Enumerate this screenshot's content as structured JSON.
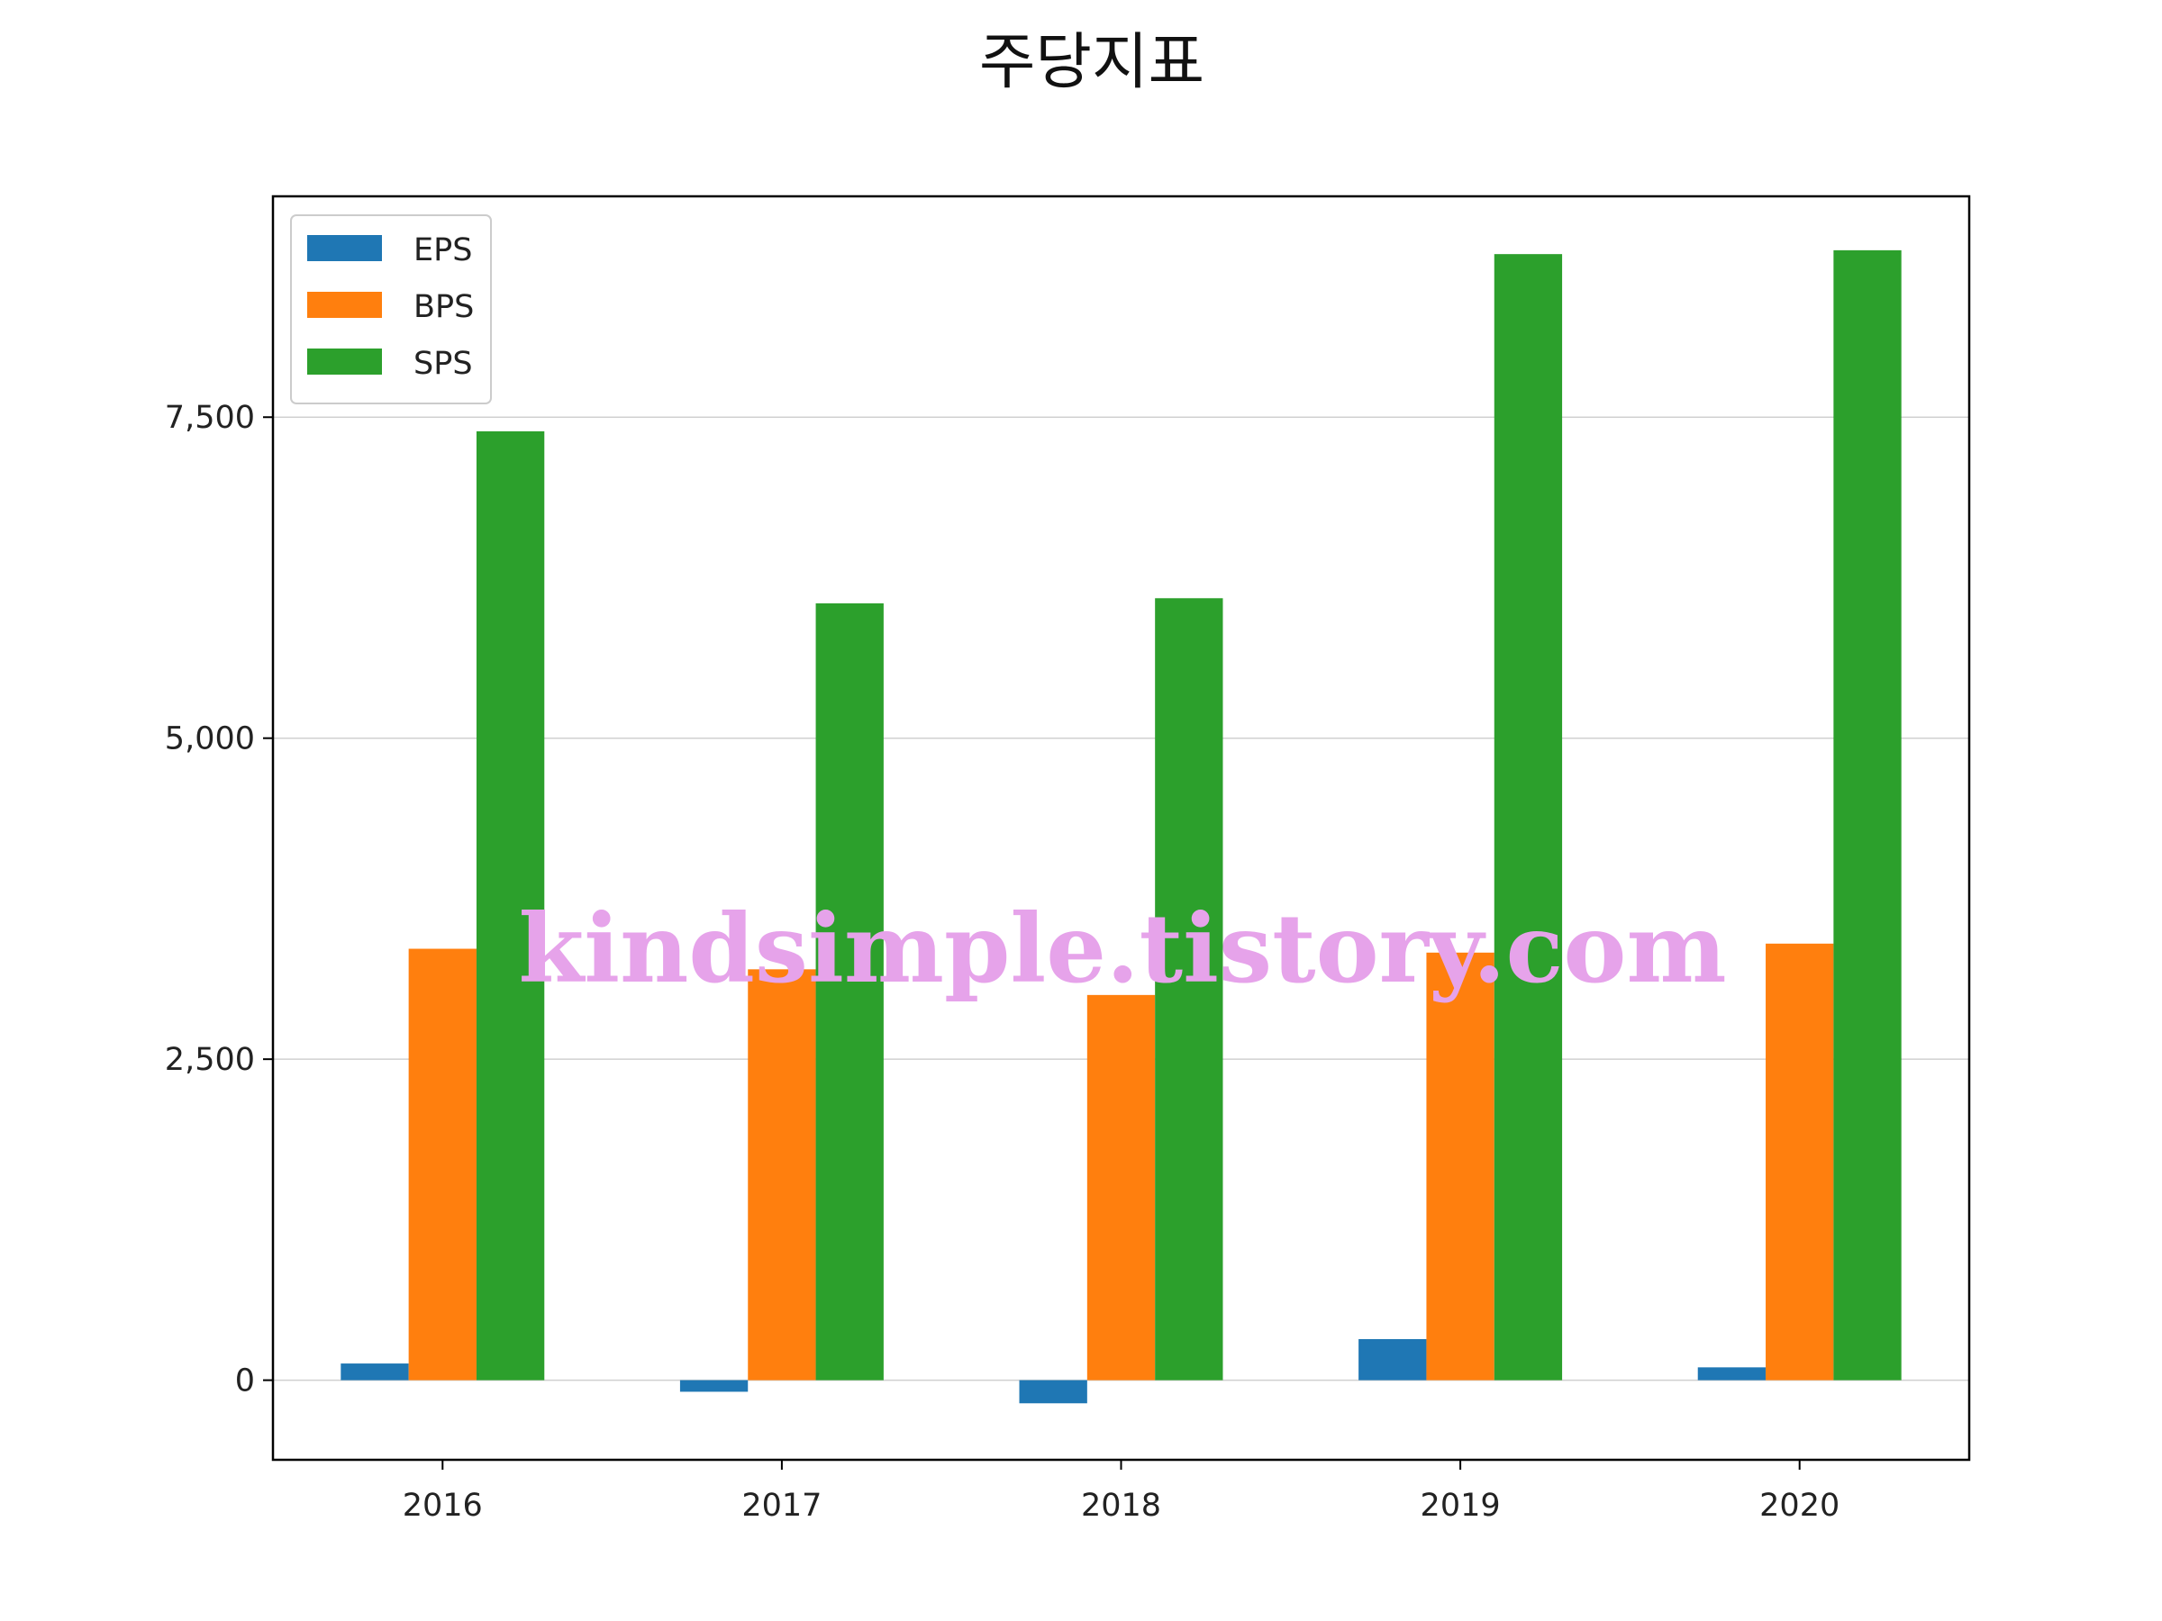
{
  "chart_data": {
    "type": "bar",
    "title": "주당지표",
    "xlabel": "",
    "ylabel": "",
    "categories": [
      "2016",
      "2017",
      "2018",
      "2019",
      "2020"
    ],
    "series": [
      {
        "name": "EPS",
        "color": "#1f77b4",
        "values": [
          130,
          -90,
          -180,
          320,
          100
        ]
      },
      {
        "name": "BPS",
        "color": "#ff7f0e",
        "values": [
          3360,
          3200,
          3000,
          3330,
          3400
        ]
      },
      {
        "name": "SPS",
        "color": "#2ca02c",
        "values": [
          7390,
          6050,
          6090,
          8770,
          8800
        ]
      }
    ],
    "yticks": [
      0,
      2500,
      5000,
      7500
    ],
    "ytick_labels": [
      "0",
      "2,500",
      "5,000",
      "7,500"
    ],
    "ylim": [
      -620,
      9220
    ],
    "grid": "horizontal",
    "legend_position": "upper-left"
  },
  "watermark": "kindsimple.tistory.com"
}
